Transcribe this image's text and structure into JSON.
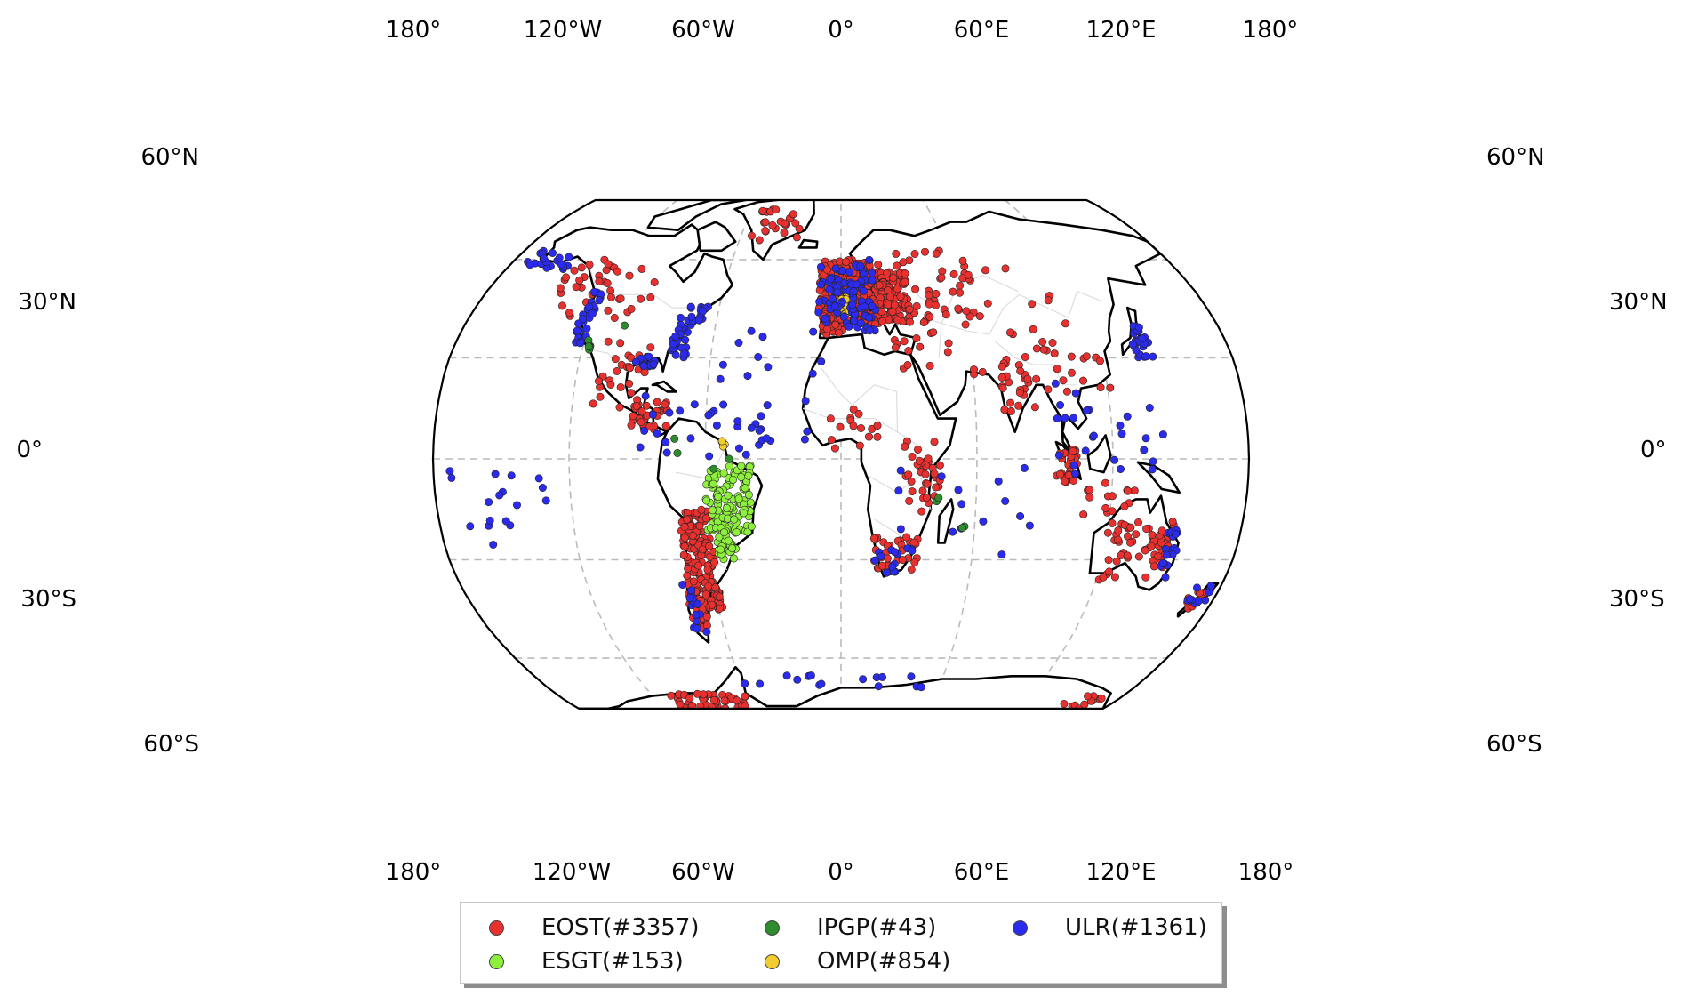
{
  "map": {
    "projection": "Robinson",
    "graticule": "dashed",
    "lon_ticks": [
      "180°",
      "120°W",
      "60°W",
      "0°",
      "60°E",
      "120°E",
      "180°"
    ],
    "lat_ticks": [
      "60°N",
      "30°N",
      "0°",
      "30°S",
      "60°S"
    ]
  },
  "legend": {
    "placement": "bottom-center",
    "entries": [
      {
        "label": "EOST(#3357)",
        "color": "#e8302f"
      },
      {
        "label": "IPGP(#43)",
        "color": "#2e8b2e"
      },
      {
        "label": "ULR(#1361)",
        "color": "#2b2bf0"
      },
      {
        "label": "ESGT(#153)",
        "color": "#8df03c"
      },
      {
        "label": "OMP(#854)",
        "color": "#f2cc2e"
      }
    ]
  },
  "icons": [
    "station-marker"
  ]
}
